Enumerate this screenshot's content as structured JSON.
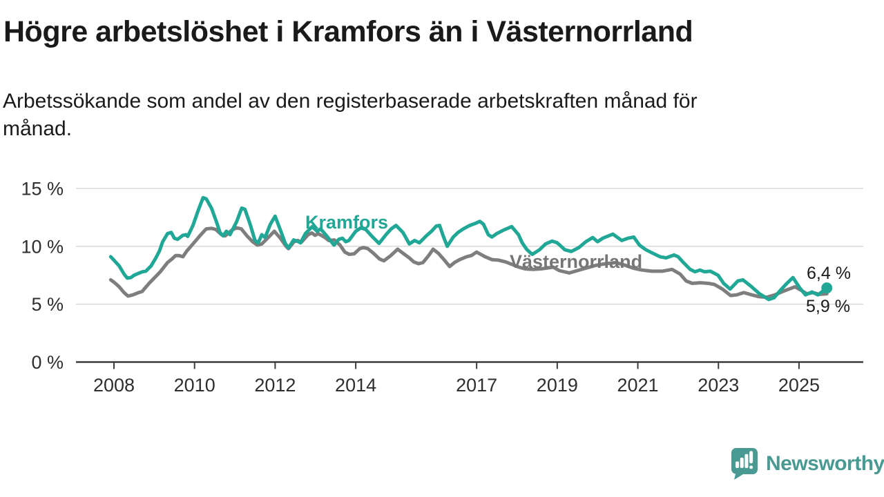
{
  "title": "Högre arbetslöshet i Kramfors än i Västernorrland",
  "subtitle": "Arbetssökande som andel av den registerbaserade arbetskraften månad för månad.",
  "subtitle_lines": [
    "Arbetssökande som andel av den registerbaserade arbetskraften månad för",
    "månad."
  ],
  "footer": {
    "brand": "Newsworthy"
  },
  "colors": {
    "kramfors": "#21a795",
    "vasternorrland": "#7e7e7e",
    "vasternorrland_label": "#767676",
    "brand_teal": "#4a9a94",
    "grid": "#d9d9d9",
    "axis": "#3b3b3b",
    "text": "#1a1a1a"
  },
  "chart_data": {
    "type": "line",
    "title": "Högre arbetslöshet i Kramfors än i Västernorrland",
    "subtitle": "Arbetssökande som andel av den registerbaserade arbetskraften månad för månad.",
    "unit": "%",
    "grid": true,
    "legend_position": "inline-labels",
    "ylim": [
      0,
      15
    ],
    "x_range": [
      2007.92,
      2025.69
    ],
    "x_axis": {
      "tick_years": [
        2008,
        2010,
        2012,
        2014,
        2017,
        2019,
        2021,
        2023,
        2025
      ]
    },
    "y_axis": {
      "ticks": [
        {
          "value": 15,
          "label": "15 %"
        },
        {
          "value": 10,
          "label": "10 %"
        },
        {
          "value": 5,
          "label": "5 %"
        },
        {
          "value": 0,
          "label": "0 %"
        }
      ]
    },
    "series": [
      {
        "id": "vasternorrland",
        "name": "Västernorrland",
        "color": "#7e7e7e",
        "last_value": 5.9,
        "points": [
          [
            2007.92,
            7.1
          ],
          [
            2008.0,
            6.9
          ],
          [
            2008.13,
            6.5
          ],
          [
            2008.25,
            6.0
          ],
          [
            2008.35,
            5.7
          ],
          [
            2008.47,
            5.8
          ],
          [
            2008.61,
            6.0
          ],
          [
            2008.7,
            6.1
          ],
          [
            2008.87,
            6.8
          ],
          [
            2009.04,
            7.4
          ],
          [
            2009.15,
            7.8
          ],
          [
            2009.33,
            8.6
          ],
          [
            2009.44,
            8.9
          ],
          [
            2009.53,
            9.2
          ],
          [
            2009.61,
            9.2
          ],
          [
            2009.71,
            9.1
          ],
          [
            2009.81,
            9.6
          ],
          [
            2009.96,
            10.2
          ],
          [
            2010.13,
            10.9
          ],
          [
            2010.29,
            11.5
          ],
          [
            2010.42,
            11.55
          ],
          [
            2010.53,
            11.45
          ],
          [
            2010.67,
            11.0
          ],
          [
            2010.76,
            10.9
          ],
          [
            2010.93,
            11.4
          ],
          [
            2011.04,
            11.6
          ],
          [
            2011.16,
            11.5
          ],
          [
            2011.3,
            10.9
          ],
          [
            2011.44,
            10.4
          ],
          [
            2011.56,
            10.1
          ],
          [
            2011.67,
            10.2
          ],
          [
            2011.84,
            10.8
          ],
          [
            2011.98,
            11.3
          ],
          [
            2012.13,
            10.7
          ],
          [
            2012.27,
            10.0
          ],
          [
            2012.33,
            9.8
          ],
          [
            2012.47,
            10.4
          ],
          [
            2012.56,
            10.5
          ],
          [
            2012.65,
            10.35
          ],
          [
            2012.82,
            11.0
          ],
          [
            2012.91,
            11.15
          ],
          [
            2012.99,
            10.95
          ],
          [
            2013.07,
            11.1
          ],
          [
            2013.22,
            10.8
          ],
          [
            2013.33,
            10.5
          ],
          [
            2013.47,
            10.55
          ],
          [
            2013.61,
            10.1
          ],
          [
            2013.73,
            9.5
          ],
          [
            2013.84,
            9.3
          ],
          [
            2013.96,
            9.35
          ],
          [
            2014.1,
            9.8
          ],
          [
            2014.19,
            9.9
          ],
          [
            2014.3,
            9.8
          ],
          [
            2014.44,
            9.4
          ],
          [
            2014.59,
            8.9
          ],
          [
            2014.7,
            8.75
          ],
          [
            2014.87,
            9.2
          ],
          [
            2015.04,
            9.75
          ],
          [
            2015.21,
            9.3
          ],
          [
            2015.33,
            9.0
          ],
          [
            2015.44,
            8.65
          ],
          [
            2015.56,
            8.5
          ],
          [
            2015.67,
            8.6
          ],
          [
            2015.81,
            9.2
          ],
          [
            2015.92,
            9.75
          ],
          [
            2016.05,
            9.4
          ],
          [
            2016.2,
            8.8
          ],
          [
            2016.33,
            8.25
          ],
          [
            2016.45,
            8.6
          ],
          [
            2016.58,
            8.85
          ],
          [
            2016.75,
            9.1
          ],
          [
            2016.87,
            9.2
          ],
          [
            2017.0,
            9.5
          ],
          [
            2017.21,
            9.1
          ],
          [
            2017.38,
            8.85
          ],
          [
            2017.55,
            8.8
          ],
          [
            2017.72,
            8.65
          ],
          [
            2017.9,
            8.4
          ],
          [
            2018.05,
            8.2
          ],
          [
            2018.2,
            8.05
          ],
          [
            2018.4,
            8.0
          ],
          [
            2018.6,
            8.05
          ],
          [
            2018.9,
            8.2
          ],
          [
            2019.05,
            7.9
          ],
          [
            2019.3,
            7.7
          ],
          [
            2019.5,
            7.9
          ],
          [
            2019.75,
            8.15
          ],
          [
            2019.95,
            8.35
          ],
          [
            2020.2,
            8.5
          ],
          [
            2020.45,
            8.6
          ],
          [
            2020.7,
            8.35
          ],
          [
            2020.9,
            8.1
          ],
          [
            2021.1,
            7.95
          ],
          [
            2021.35,
            7.85
          ],
          [
            2021.6,
            7.85
          ],
          [
            2021.85,
            8.0
          ],
          [
            2022.05,
            7.6
          ],
          [
            2022.2,
            7.0
          ],
          [
            2022.35,
            6.8
          ],
          [
            2022.55,
            6.85
          ],
          [
            2022.75,
            6.8
          ],
          [
            2022.9,
            6.7
          ],
          [
            2023.1,
            6.3
          ],
          [
            2023.3,
            5.75
          ],
          [
            2023.45,
            5.8
          ],
          [
            2023.63,
            6.0
          ],
          [
            2023.83,
            5.8
          ],
          [
            2024.0,
            5.65
          ],
          [
            2024.2,
            5.6
          ],
          [
            2024.4,
            5.8
          ],
          [
            2024.6,
            6.1
          ],
          [
            2024.9,
            6.5
          ],
          [
            2025.05,
            6.2
          ],
          [
            2025.2,
            5.9
          ],
          [
            2025.35,
            6.0
          ],
          [
            2025.5,
            5.85
          ],
          [
            2025.69,
            5.9
          ]
        ]
      },
      {
        "id": "kramfors",
        "name": "Kramfors",
        "color": "#21a795",
        "last_value": 6.4,
        "points": [
          [
            2007.92,
            9.1
          ],
          [
            2008.0,
            8.8
          ],
          [
            2008.13,
            8.3
          ],
          [
            2008.25,
            7.6
          ],
          [
            2008.33,
            7.25
          ],
          [
            2008.42,
            7.3
          ],
          [
            2008.5,
            7.5
          ],
          [
            2008.63,
            7.7
          ],
          [
            2008.71,
            7.8
          ],
          [
            2008.79,
            7.85
          ],
          [
            2008.92,
            8.3
          ],
          [
            2009.04,
            9.0
          ],
          [
            2009.13,
            9.6
          ],
          [
            2009.21,
            10.4
          ],
          [
            2009.33,
            11.1
          ],
          [
            2009.42,
            11.2
          ],
          [
            2009.5,
            10.7
          ],
          [
            2009.58,
            10.6
          ],
          [
            2009.71,
            10.95
          ],
          [
            2009.79,
            11.0
          ],
          [
            2009.83,
            10.85
          ],
          [
            2009.96,
            11.8
          ],
          [
            2010.08,
            13.0
          ],
          [
            2010.21,
            14.2
          ],
          [
            2010.29,
            14.1
          ],
          [
            2010.42,
            13.3
          ],
          [
            2010.54,
            12.15
          ],
          [
            2010.63,
            11.2
          ],
          [
            2010.71,
            10.9
          ],
          [
            2010.79,
            11.3
          ],
          [
            2010.88,
            11.0
          ],
          [
            2011.04,
            12.1
          ],
          [
            2011.17,
            13.3
          ],
          [
            2011.25,
            13.2
          ],
          [
            2011.38,
            11.9
          ],
          [
            2011.5,
            10.5
          ],
          [
            2011.58,
            10.3
          ],
          [
            2011.67,
            11.0
          ],
          [
            2011.75,
            10.75
          ],
          [
            2011.88,
            11.9
          ],
          [
            2012.0,
            12.6
          ],
          [
            2012.13,
            11.4
          ],
          [
            2012.25,
            10.25
          ],
          [
            2012.33,
            9.85
          ],
          [
            2012.46,
            10.55
          ],
          [
            2012.58,
            10.4
          ],
          [
            2012.63,
            10.3
          ],
          [
            2012.75,
            11.1
          ],
          [
            2012.92,
            11.7
          ],
          [
            2013.04,
            11.3
          ],
          [
            2013.13,
            11.5
          ],
          [
            2013.29,
            10.85
          ],
          [
            2013.46,
            10.1
          ],
          [
            2013.58,
            10.6
          ],
          [
            2013.67,
            10.7
          ],
          [
            2013.75,
            10.4
          ],
          [
            2013.83,
            10.5
          ],
          [
            2014.0,
            11.3
          ],
          [
            2014.13,
            11.6
          ],
          [
            2014.25,
            11.45
          ],
          [
            2014.42,
            10.8
          ],
          [
            2014.58,
            10.25
          ],
          [
            2014.75,
            11.0
          ],
          [
            2014.88,
            11.5
          ],
          [
            2015.0,
            11.8
          ],
          [
            2015.17,
            11.2
          ],
          [
            2015.33,
            10.2
          ],
          [
            2015.46,
            10.5
          ],
          [
            2015.58,
            10.3
          ],
          [
            2015.75,
            10.9
          ],
          [
            2015.88,
            11.3
          ],
          [
            2016.0,
            11.75
          ],
          [
            2016.08,
            11.8
          ],
          [
            2016.17,
            10.9
          ],
          [
            2016.27,
            10.0
          ],
          [
            2016.42,
            10.8
          ],
          [
            2016.54,
            11.2
          ],
          [
            2016.67,
            11.5
          ],
          [
            2016.83,
            11.8
          ],
          [
            2016.98,
            12.0
          ],
          [
            2017.08,
            12.15
          ],
          [
            2017.17,
            11.9
          ],
          [
            2017.29,
            11.0
          ],
          [
            2017.38,
            10.8
          ],
          [
            2017.5,
            11.1
          ],
          [
            2017.67,
            11.4
          ],
          [
            2017.87,
            11.7
          ],
          [
            2018.04,
            11.0
          ],
          [
            2018.13,
            10.3
          ],
          [
            2018.25,
            9.7
          ],
          [
            2018.38,
            9.3
          ],
          [
            2018.56,
            9.7
          ],
          [
            2018.71,
            10.2
          ],
          [
            2018.87,
            10.45
          ],
          [
            2019.0,
            10.3
          ],
          [
            2019.19,
            9.7
          ],
          [
            2019.35,
            9.55
          ],
          [
            2019.54,
            9.9
          ],
          [
            2019.71,
            10.4
          ],
          [
            2019.88,
            10.75
          ],
          [
            2020.0,
            10.4
          ],
          [
            2020.13,
            10.7
          ],
          [
            2020.38,
            11.05
          ],
          [
            2020.6,
            10.5
          ],
          [
            2020.76,
            10.7
          ],
          [
            2020.9,
            10.8
          ],
          [
            2021.04,
            10.1
          ],
          [
            2021.2,
            9.7
          ],
          [
            2021.4,
            9.35
          ],
          [
            2021.55,
            9.1
          ],
          [
            2021.7,
            9.0
          ],
          [
            2021.9,
            9.25
          ],
          [
            2022.0,
            9.1
          ],
          [
            2022.13,
            8.6
          ],
          [
            2022.3,
            8.0
          ],
          [
            2022.42,
            7.8
          ],
          [
            2022.54,
            7.95
          ],
          [
            2022.65,
            7.8
          ],
          [
            2022.8,
            7.85
          ],
          [
            2022.99,
            7.5
          ],
          [
            2023.13,
            6.8
          ],
          [
            2023.29,
            6.3
          ],
          [
            2023.48,
            7.0
          ],
          [
            2023.61,
            7.1
          ],
          [
            2023.79,
            6.6
          ],
          [
            2024.02,
            5.9
          ],
          [
            2024.25,
            5.4
          ],
          [
            2024.38,
            5.55
          ],
          [
            2024.54,
            6.2
          ],
          [
            2024.7,
            6.8
          ],
          [
            2024.85,
            7.3
          ],
          [
            2025.02,
            6.4
          ],
          [
            2025.16,
            5.8
          ],
          [
            2025.32,
            6.05
          ],
          [
            2025.47,
            5.8
          ],
          [
            2025.69,
            6.4
          ]
        ]
      }
    ],
    "inline_labels": [
      {
        "series_id": "kramfors",
        "text": "Kramfors"
      },
      {
        "series_id": "vasternorrland",
        "text": "Västernorrland"
      }
    ],
    "end_labels": [
      {
        "series_id": "kramfors",
        "text": "6,4 %"
      },
      {
        "series_id": "vasternorrland",
        "text": "5,9 %"
      }
    ],
    "end_dot": {
      "series_id": "kramfors",
      "x": 2025.69,
      "y": 6.4
    }
  }
}
